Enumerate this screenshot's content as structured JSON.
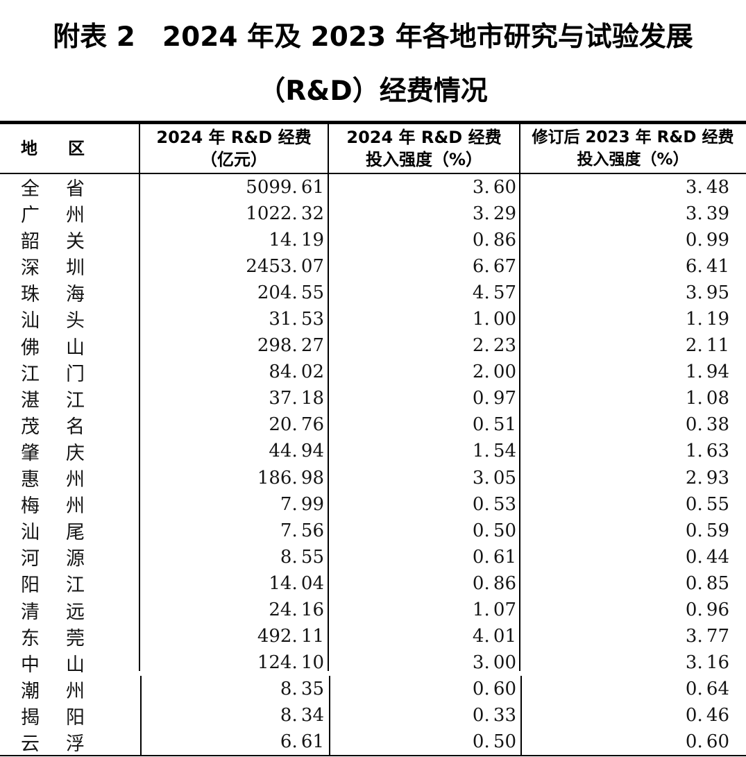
{
  "title": {
    "line1": "附表 2　2024 年及 2023 年各地市研究与试验发展",
    "line2": "（R&D）经费情况"
  },
  "table": {
    "header": {
      "region_c1": "地",
      "region_c2": "区",
      "col2_line1": "2024 年 R&D 经费",
      "col2_line2": "（亿元）",
      "col3_line1": "2024 年 R&D 经费",
      "col3_line2": "投入强度（%）",
      "col4_line1": "修订后 2023 年 R&D 经费",
      "col4_line2": "投入强度（%）"
    },
    "columns_semantic": [
      "地区",
      "2024年R&D经费（亿元）",
      "2024年R&D经费投入强度（%）",
      "修订后2023年R&D经费投入强度（%）"
    ],
    "rows": [
      {
        "region": "全省",
        "c1": "全",
        "c2": "省",
        "rd": "5099.61",
        "i24": "3.60",
        "i23": "3.48"
      },
      {
        "region": "广州",
        "c1": "广",
        "c2": "州",
        "rd": "1022.32",
        "i24": "3.29",
        "i23": "3.39"
      },
      {
        "region": "韶关",
        "c1": "韶",
        "c2": "关",
        "rd": "14.19",
        "i24": "0.86",
        "i23": "0.99"
      },
      {
        "region": "深圳",
        "c1": "深",
        "c2": "圳",
        "rd": "2453.07",
        "i24": "6.67",
        "i23": "6.41"
      },
      {
        "region": "珠海",
        "c1": "珠",
        "c2": "海",
        "rd": "204.55",
        "i24": "4.57",
        "i23": "3.95"
      },
      {
        "region": "汕头",
        "c1": "汕",
        "c2": "头",
        "rd": "31.53",
        "i24": "1.00",
        "i23": "1.19"
      },
      {
        "region": "佛山",
        "c1": "佛",
        "c2": "山",
        "rd": "298.27",
        "i24": "2.23",
        "i23": "2.11"
      },
      {
        "region": "江门",
        "c1": "江",
        "c2": "门",
        "rd": "84.02",
        "i24": "2.00",
        "i23": "1.94"
      },
      {
        "region": "湛江",
        "c1": "湛",
        "c2": "江",
        "rd": "37.18",
        "i24": "0.97",
        "i23": "1.08"
      },
      {
        "region": "茂名",
        "c1": "茂",
        "c2": "名",
        "rd": "20.76",
        "i24": "0.51",
        "i23": "0.38"
      },
      {
        "region": "肇庆",
        "c1": "肇",
        "c2": "庆",
        "rd": "44.94",
        "i24": "1.54",
        "i23": "1.63"
      },
      {
        "region": "惠州",
        "c1": "惠",
        "c2": "州",
        "rd": "186.98",
        "i24": "3.05",
        "i23": "2.93"
      },
      {
        "region": "梅州",
        "c1": "梅",
        "c2": "州",
        "rd": "7.99",
        "i24": "0.53",
        "i23": "0.55"
      },
      {
        "region": "汕尾",
        "c1": "汕",
        "c2": "尾",
        "rd": "7.56",
        "i24": "0.50",
        "i23": "0.59"
      },
      {
        "region": "河源",
        "c1": "河",
        "c2": "源",
        "rd": "8.55",
        "i24": "0.61",
        "i23": "0.44"
      },
      {
        "region": "阳江",
        "c1": "阳",
        "c2": "江",
        "rd": "14.04",
        "i24": "0.86",
        "i23": "0.85"
      },
      {
        "region": "清远",
        "c1": "清",
        "c2": "远",
        "rd": "24.16",
        "i24": "1.07",
        "i23": "0.96"
      },
      {
        "region": "东莞",
        "c1": "东",
        "c2": "莞",
        "rd": "492.11",
        "i24": "4.01",
        "i23": "3.77"
      },
      {
        "region": "中山",
        "c1": "中",
        "c2": "山",
        "rd": "124.10",
        "i24": "3.00",
        "i23": "3.16"
      },
      {
        "region": "潮州",
        "c1": "潮",
        "c2": "州",
        "rd": "8.35",
        "i24": "0.60",
        "i23": "0.64"
      },
      {
        "region": "揭阳",
        "c1": "揭",
        "c2": "阳",
        "rd": "8.34",
        "i24": "0.33",
        "i23": "0.46"
      },
      {
        "region": "云浮",
        "c1": "云",
        "c2": "浮",
        "rd": "6.61",
        "i24": "0.50",
        "i23": "0.60"
      }
    ]
  },
  "style": {
    "text_color": "#141414",
    "border_color": "#000000",
    "background_color": "#ffffff"
  }
}
